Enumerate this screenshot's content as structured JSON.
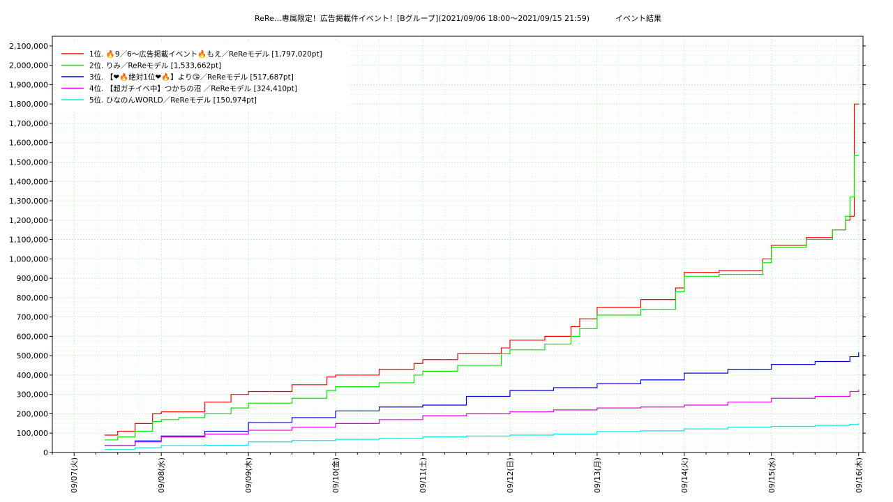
{
  "chart_data": {
    "type": "line",
    "title": "ReRe…専属限定！広告掲載件イベント！[Bグループ](2021/09/06 18:00〜2021/09/15 21:59)",
    "subtitle": "イベント結果",
    "xlabel": "",
    "ylabel": "",
    "ylim": [
      0,
      2150000
    ],
    "yticks": [
      0,
      100000,
      200000,
      300000,
      400000,
      500000,
      600000,
      700000,
      800000,
      900000,
      1000000,
      1100000,
      1200000,
      1300000,
      1400000,
      1500000,
      1600000,
      1700000,
      1800000,
      1900000,
      2000000,
      2100000
    ],
    "ytick_labels": [
      "0",
      "100,000",
      "200,000",
      "300,000",
      "400,000",
      "500,000",
      "600,000",
      "700,000",
      "800,000",
      "900,000",
      "1,000,000",
      "1,100,000",
      "1,200,000",
      "1,300,000",
      "1,400,000",
      "1,500,000",
      "1,600,000",
      "1,700,000",
      "1,800,000",
      "1,900,000",
      "2,000,000",
      "2,100,000"
    ],
    "xlim": [
      -0.25,
      9.05
    ],
    "xticks": [
      0,
      1,
      2,
      3,
      4,
      5,
      6,
      7,
      8,
      9
    ],
    "xtick_labels": [
      "09/07(火)",
      "09/08(水)",
      "09/09(木)",
      "09/10(金)",
      "09/11(土)",
      "09/12(日)",
      "09/13(月)",
      "09/14(火)",
      "09/15(水)",
      "09/16(木)"
    ],
    "grid": true,
    "legend_position": "top-left",
    "series": [
      {
        "name": "1位. 🔥9／6〜広告掲載イベント🔥もえ／ReReモデル [1,797,020pt]",
        "color": "#ff0000",
        "x": [
          0.35,
          0.5,
          0.7,
          0.9,
          1.0,
          1.2,
          1.5,
          1.8,
          2.0,
          2.5,
          2.9,
          3.0,
          3.5,
          3.9,
          4.0,
          4.4,
          4.9,
          5.0,
          5.4,
          5.7,
          5.8,
          6.0,
          6.5,
          6.9,
          7.0,
          7.4,
          7.9,
          8.0,
          8.4,
          8.7,
          8.85,
          8.9,
          8.95,
          9.0
        ],
        "y": [
          90000,
          110000,
          150000,
          200000,
          210000,
          210000,
          260000,
          300000,
          315000,
          350000,
          390000,
          400000,
          430000,
          460000,
          480000,
          510000,
          540000,
          580000,
          600000,
          650000,
          690000,
          750000,
          790000,
          850000,
          930000,
          940000,
          1000000,
          1070000,
          1110000,
          1150000,
          1200000,
          1220000,
          1800000,
          1797020
        ]
      },
      {
        "name": "2位. りみ／ReReモデル [1,533,662pt]",
        "color": "#00e600",
        "x": [
          0.35,
          0.5,
          0.7,
          0.9,
          1.0,
          1.2,
          1.5,
          1.8,
          2.0,
          2.5,
          2.9,
          3.0,
          3.5,
          3.9,
          4.0,
          4.4,
          4.9,
          5.0,
          5.4,
          5.7,
          5.8,
          6.0,
          6.5,
          6.9,
          7.0,
          7.4,
          7.9,
          8.0,
          8.4,
          8.7,
          8.85,
          8.9,
          8.95,
          9.0
        ],
        "y": [
          65000,
          80000,
          110000,
          160000,
          170000,
          180000,
          200000,
          230000,
          255000,
          280000,
          320000,
          340000,
          360000,
          400000,
          420000,
          450000,
          510000,
          530000,
          560000,
          600000,
          640000,
          710000,
          740000,
          830000,
          910000,
          920000,
          980000,
          1060000,
          1100000,
          1150000,
          1220000,
          1320000,
          1535000,
          1533662
        ]
      },
      {
        "name": "3位. 【❤🔥絶対1位❤🔥】より😘／ReReモデル [517,687pt]",
        "color": "#0000dd",
        "x": [
          0.35,
          0.7,
          1.0,
          1.5,
          2.0,
          2.5,
          3.0,
          3.5,
          4.0,
          4.5,
          5.0,
          5.5,
          6.0,
          6.5,
          7.0,
          7.5,
          8.0,
          8.5,
          8.9,
          9.0
        ],
        "y": [
          35000,
          60000,
          85000,
          110000,
          155000,
          180000,
          215000,
          235000,
          245000,
          290000,
          320000,
          335000,
          355000,
          375000,
          410000,
          430000,
          455000,
          470000,
          495000,
          517687
        ]
      },
      {
        "name": "4位. 【超ガチイベ中】つかちの沼 ／ReReモデル [324,410pt]",
        "color": "#e600e6",
        "x": [
          0.35,
          0.7,
          1.0,
          1.5,
          2.0,
          2.5,
          3.0,
          3.5,
          4.0,
          4.5,
          5.0,
          5.5,
          6.0,
          6.5,
          7.0,
          7.5,
          8.0,
          8.5,
          8.9,
          9.0
        ],
        "y": [
          35000,
          55000,
          80000,
          95000,
          115000,
          130000,
          150000,
          170000,
          190000,
          200000,
          210000,
          220000,
          230000,
          235000,
          245000,
          260000,
          280000,
          290000,
          315000,
          324410
        ]
      },
      {
        "name": "5位. ひなのんWORLD／ReReモデル [150,974pt]",
        "color": "#00e6e6",
        "x": [
          0.35,
          0.7,
          1.0,
          1.5,
          2.0,
          2.5,
          3.0,
          3.5,
          4.0,
          4.5,
          5.0,
          5.5,
          6.0,
          6.5,
          7.0,
          7.5,
          8.0,
          8.5,
          8.9,
          9.0
        ],
        "y": [
          15000,
          25000,
          35000,
          38000,
          55000,
          62000,
          68000,
          72000,
          80000,
          85000,
          90000,
          95000,
          108000,
          112000,
          122000,
          130000,
          135000,
          140000,
          145000,
          150974
        ]
      }
    ]
  }
}
